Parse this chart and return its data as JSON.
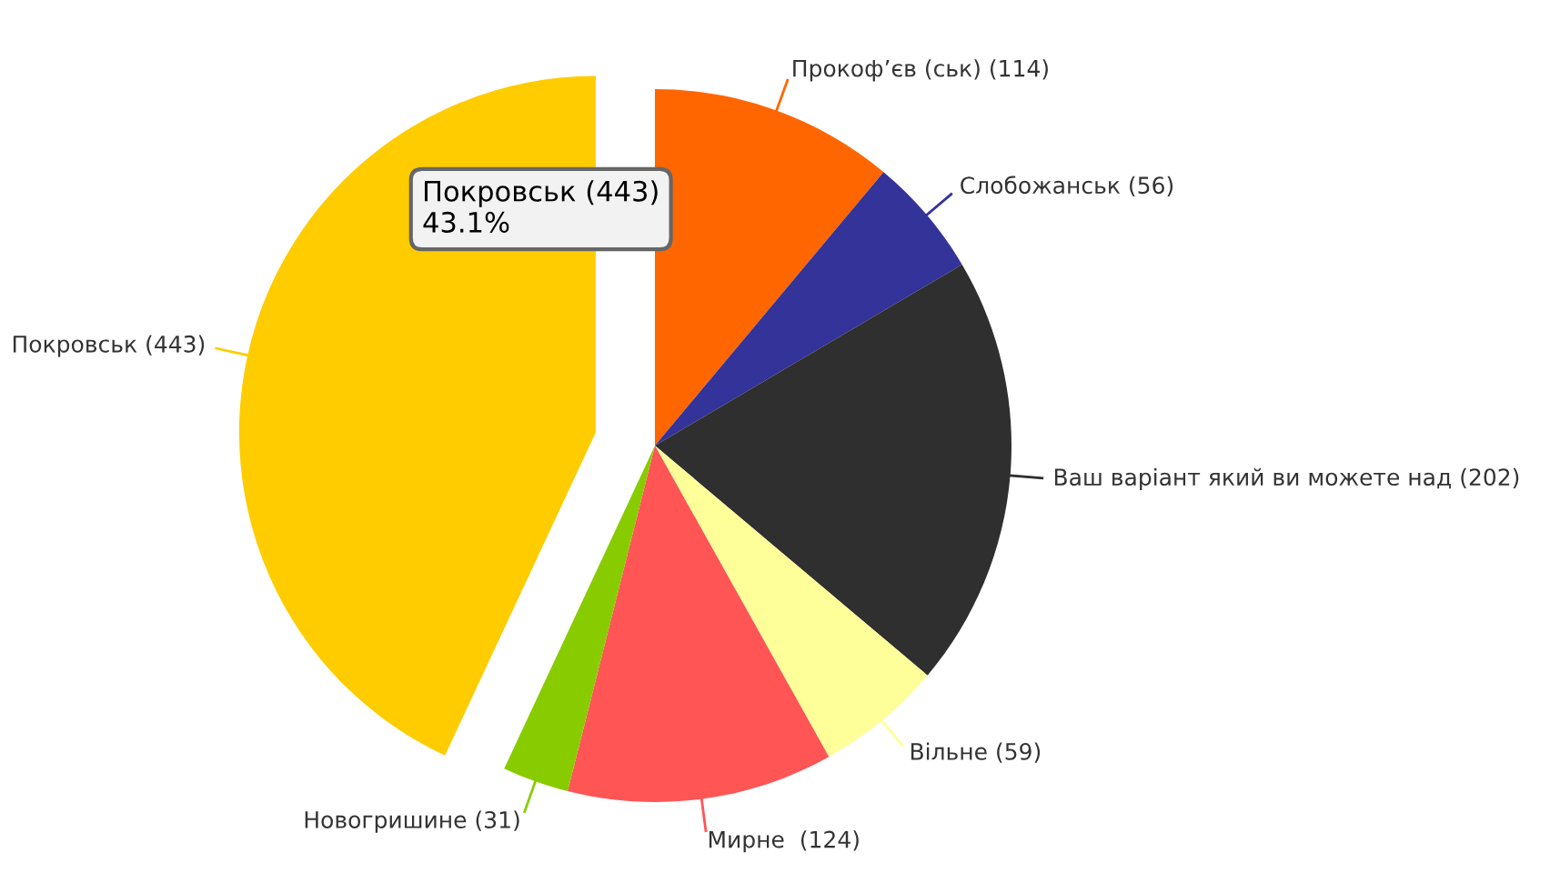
{
  "chart_data": {
    "type": "pie",
    "categories": [
      "Прокоф’єв (ськ)",
      "Слобожанськ",
      "Ваш варіант який ви можете над",
      "Вільне",
      "Мирне ",
      "Новогришине",
      "Покровськ"
    ],
    "values": [
      114,
      56,
      202,
      59,
      124,
      31,
      443
    ],
    "colors": [
      "#ff6600",
      "#333399",
      "#2f2f2f",
      "#ffff99",
      "#ff5555",
      "#88cc00",
      "#ffcc00"
    ],
    "value_labels": [
      "(114)",
      "(56)",
      "(202)",
      "(59)",
      "(124)",
      "(31)",
      "(443)"
    ],
    "annotations": [
      "Покровськ (443)\n43.1%"
    ]
  }
}
